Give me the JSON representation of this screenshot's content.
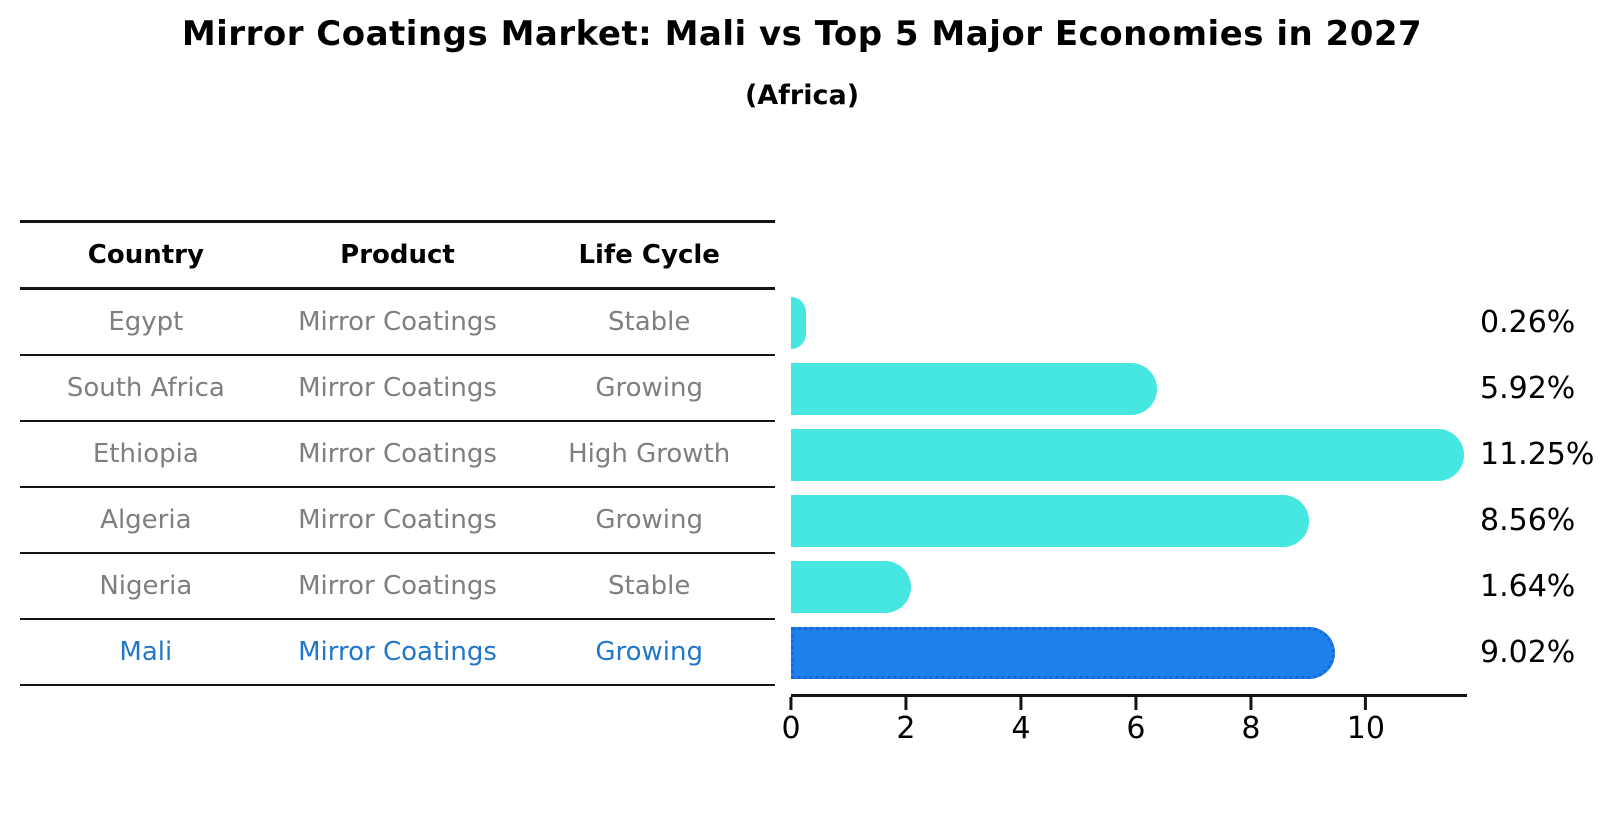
{
  "title": "Mirror Coatings Market: Mali vs Top 5 Major Economies in 2027",
  "subtitle": "(Africa)",
  "table": {
    "headers": [
      "Country",
      "Product",
      "Life Cycle"
    ],
    "rows": [
      {
        "country": "Egypt",
        "product": "Mirror Coatings",
        "life_cycle": "Stable",
        "highlight": false
      },
      {
        "country": "South Africa",
        "product": "Mirror Coatings",
        "life_cycle": "Growing",
        "highlight": false
      },
      {
        "country": "Ethiopia",
        "product": "Mirror Coatings",
        "life_cycle": "High Growth",
        "highlight": false
      },
      {
        "country": "Algeria",
        "product": "Mirror Coatings",
        "life_cycle": "Growing",
        "highlight": false
      },
      {
        "country": "Nigeria",
        "product": "Mirror Coatings",
        "life_cycle": "Stable",
        "highlight": false
      },
      {
        "country": "Mali",
        "product": "Mirror Coatings",
        "life_cycle": "Growing",
        "highlight": true
      }
    ]
  },
  "chart_data": {
    "type": "bar",
    "orientation": "horizontal",
    "title": "Mirror Coatings Market: Mali vs Top 5 Major Economies in 2027",
    "subtitle": "(Africa)",
    "categories": [
      "Egypt",
      "South Africa",
      "Ethiopia",
      "Algeria",
      "Nigeria",
      "Mali"
    ],
    "values": [
      0.26,
      5.92,
      11.25,
      8.56,
      1.64,
      9.02
    ],
    "value_labels": [
      "0.26%",
      "5.92%",
      "11.25%",
      "8.56%",
      "1.64%",
      "9.02%"
    ],
    "highlight_category": "Mali",
    "x_ticks": [
      0,
      2,
      4,
      6,
      8,
      10
    ],
    "xlim": [
      0,
      11.76
    ],
    "grid": false,
    "legend": "none",
    "xlabel": "",
    "ylabel": ""
  },
  "colors": {
    "bar": "#45E7E0",
    "highlight_bar": "#1E80EA",
    "highlight_edge": "#1668D8",
    "highlight_text": "#2377C8",
    "cell_text": "#7F7F7F",
    "line": "#141414"
  }
}
